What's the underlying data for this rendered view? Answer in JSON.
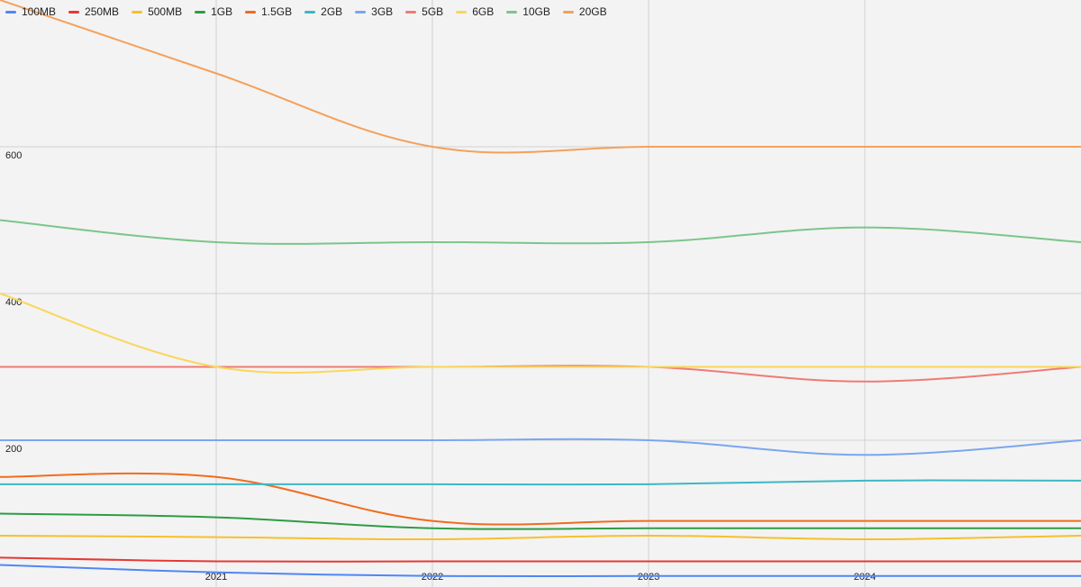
{
  "chart_data": {
    "type": "line",
    "title": "",
    "xlabel": "",
    "ylabel": "",
    "x": [
      2020,
      2021,
      2022,
      2023,
      2024,
      2025
    ],
    "xtick_labels": [
      "2021",
      "2022",
      "2023",
      "2024"
    ],
    "ytick_labels": [
      "200",
      "400",
      "600"
    ],
    "ylim": [
      0,
      800
    ],
    "grid": true,
    "legend_position": "top-left",
    "series": [
      {
        "name": "100MB",
        "color": "#4f86f7",
        "values": [
          30,
          20,
          15,
          15,
          15,
          15
        ]
      },
      {
        "name": "250MB",
        "color": "#e53935",
        "values": [
          40,
          35,
          35,
          35,
          35,
          35
        ]
      },
      {
        "name": "500MB",
        "color": "#f6c02c",
        "values": [
          70,
          68,
          65,
          70,
          65,
          70
        ]
      },
      {
        "name": "1GB",
        "color": "#2e9c44",
        "values": [
          100,
          95,
          80,
          80,
          80,
          80
        ]
      },
      {
        "name": "1.5GB",
        "color": "#f26b1d",
        "values": [
          150,
          150,
          90,
          90,
          90,
          90
        ]
      },
      {
        "name": "2GB",
        "color": "#3bb8c4",
        "values": [
          140,
          140,
          140,
          140,
          145,
          145
        ]
      },
      {
        "name": "3GB",
        "color": "#7aa6f0",
        "values": [
          200,
          200,
          200,
          200,
          180,
          200
        ]
      },
      {
        "name": "5GB",
        "color": "#ef7b74",
        "values": [
          300,
          300,
          300,
          300,
          280,
          300
        ]
      },
      {
        "name": "6GB",
        "color": "#fad65a",
        "values": [
          400,
          300,
          300,
          300,
          300,
          300
        ]
      },
      {
        "name": "10GB",
        "color": "#7cc58a",
        "values": [
          500,
          470,
          470,
          470,
          490,
          470
        ]
      },
      {
        "name": "20GB",
        "color": "#f5a05a",
        "values": [
          800,
          700,
          600,
          600,
          600,
          600
        ]
      }
    ]
  }
}
